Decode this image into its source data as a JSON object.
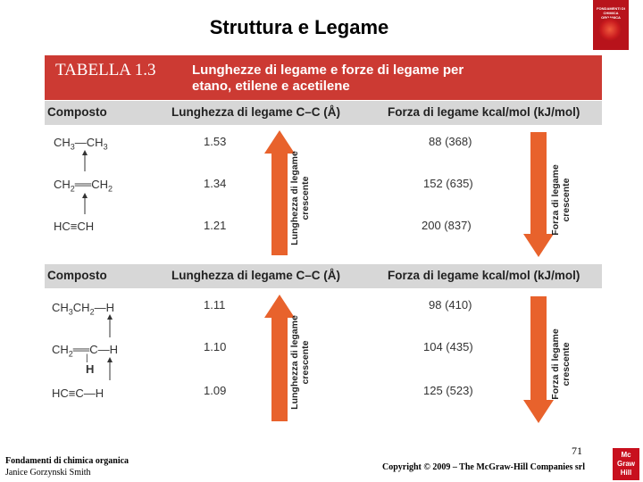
{
  "slide": {
    "title": "Struttura e Legame"
  },
  "cover": {
    "title": "FONDAMENTI DI CHIMICA ORGANICA"
  },
  "table": {
    "label": "TABELLA 1.3",
    "caption_line1": "Lunghezze di legame e forze di legame per",
    "caption_line2": "etano, etilene e acetilene",
    "headers": {
      "compound": "Composto",
      "length": "Lunghezza di legame C–C (Å)",
      "strength": "Forza di legame kcal/mol (kJ/mol)"
    },
    "section1": {
      "rows": [
        {
          "length": "1.53",
          "strength": "88 (368)"
        },
        {
          "length": "1.34",
          "strength": "152 (635)"
        },
        {
          "length": "1.21",
          "strength": "200 (837)"
        }
      ]
    },
    "section2": {
      "rows": [
        {
          "length": "1.11",
          "strength": "98 (410)"
        },
        {
          "length": "1.10",
          "strength": "104 (435)"
        },
        {
          "length": "1.09",
          "strength": "125 (523)"
        }
      ]
    },
    "arrow_length_label1": "Lunghezza di legame",
    "arrow_length_label2": "crescente",
    "arrow_strength_label1": "Forza di legame",
    "arrow_strength_label2": "crescente",
    "colors": {
      "banner": "#cc3a33",
      "arrow": "#e8622c",
      "header": "#d7d7d7"
    }
  },
  "footer": {
    "book": "Fondamenti di chimica organica",
    "author": "Janice Gorzynski Smith",
    "page": "71",
    "copyright": "Copyright © 2009 – The McGraw-Hill Companies srl",
    "logo_lines": [
      "Mc",
      "Graw",
      "Hill"
    ]
  }
}
